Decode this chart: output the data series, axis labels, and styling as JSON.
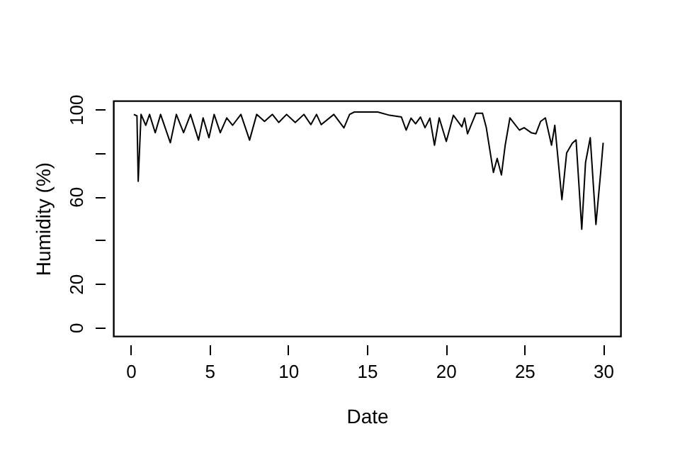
{
  "chart_data": {
    "type": "line",
    "xlabel": "Date",
    "ylabel": "Humidity (%)",
    "x": [
      0.2,
      0.4,
      0.48,
      0.66,
      0.96,
      1.2,
      1.56,
      1.9,
      2.52,
      2.9,
      3.36,
      3.8,
      4.31,
      4.6,
      4.97,
      5.3,
      5.69,
      6.1,
      6.47,
      7.0,
      7.55,
      8.0,
      8.5,
      9.0,
      9.4,
      9.9,
      10.45,
      11.0,
      11.44,
      11.8,
      12.1,
      12.9,
      13.54,
      13.9,
      14.2,
      15.69,
      16.44,
      17.19,
      17.49,
      17.8,
      18.09,
      18.4,
      18.69,
      19.0,
      19.29,
      19.59,
      20.04,
      20.49,
      21.03,
      21.2,
      21.39,
      21.92,
      22.34,
      22.58,
      23.03,
      23.27,
      23.54,
      23.78,
      24.08,
      24.68,
      24.98,
      25.43,
      25.73,
      26.03,
      26.33,
      26.72,
      26.93,
      27.38,
      27.68,
      28.04,
      28.28,
      28.64,
      28.88,
      29.18,
      29.54,
      29.84,
      30.0
    ],
    "values": [
      97.7,
      97,
      67,
      97.7,
      92.7,
      97.7,
      89.3,
      97.7,
      84.7,
      97.7,
      89.3,
      97.7,
      85.9,
      96.1,
      87,
      97.7,
      89.3,
      96.1,
      92.7,
      97.7,
      85.9,
      97.7,
      94.5,
      97.7,
      94,
      97.7,
      94,
      97.7,
      93,
      97.7,
      93,
      97.7,
      91.5,
      97.7,
      98.8,
      98.8,
      97.3,
      96.5,
      90.5,
      96,
      93.4,
      96.5,
      91.6,
      96,
      83.6,
      96.1,
      85.3,
      97.3,
      92,
      96,
      88.8,
      98.2,
      98.2,
      91.6,
      71.1,
      77.5,
      69.9,
      83.6,
      96.1,
      90.5,
      91.6,
      89.3,
      88.8,
      94.5,
      96.1,
      83.6,
      92.7,
      58.6,
      80,
      84.5,
      86,
      45,
      75.6,
      87,
      47.2,
      71,
      84.7
    ],
    "color": "#000000",
    "xlim": [
      -1.1,
      31.1
    ],
    "xticks": [
      0,
      5,
      10,
      15,
      20,
      25,
      30
    ],
    "ylim": [
      -4,
      104
    ],
    "yticks": [
      0,
      20,
      {
        "value": 40,
        "label": null
      },
      60,
      {
        "value": 80,
        "label": null
      },
      100
    ],
    "grid": false,
    "line_style": "solid",
    "marker": "none"
  }
}
